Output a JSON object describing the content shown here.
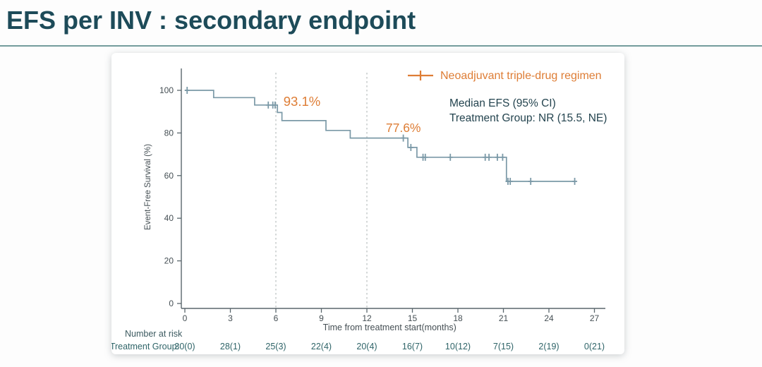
{
  "header": {
    "title": "EFS per INV : secondary endpoint"
  },
  "legend": {
    "series_label": "Neoadjuvant triple-drug regimen",
    "stats_line1": "Median EFS (95% CI)",
    "stats_line2": "Treatment Group: NR (15.5, NE)"
  },
  "colors": {
    "title": "#1d4b59",
    "rule": "#749c9c",
    "curve": "#7b99a7",
    "axis": "#5a676d",
    "tick_label": "#454f54",
    "orange": "#de7d35",
    "stats_text": "#24444f",
    "risk_text": "#2f6468",
    "risk_heading": "#3c5a60",
    "dashed_line": "#b8bdbd"
  },
  "chart_data": {
    "type": "line",
    "subtype": "kaplan-meier-step",
    "title": "",
    "xlabel": "Time from treatment start(months)",
    "ylabel": "Event-Free Survival (%)",
    "xticks": [
      0,
      3,
      6,
      9,
      12,
      15,
      18,
      21,
      24,
      27
    ],
    "yticks": [
      0,
      20,
      40,
      60,
      80,
      100
    ],
    "xlim": [
      0,
      28
    ],
    "ylim": [
      0,
      105
    ],
    "grid": false,
    "legend_position": "top-right",
    "reference_lines_x": [
      6,
      12
    ],
    "series": [
      {
        "name": "Neoadjuvant triple-drug regimen",
        "start": [
          0,
          100
        ],
        "steps": [
          [
            1.9,
            96.6
          ],
          [
            4.6,
            93.1
          ],
          [
            6.1,
            89.6
          ],
          [
            6.4,
            85.8
          ],
          [
            9.3,
            81.2
          ],
          [
            10.9,
            77.6
          ],
          [
            14.7,
            73.2
          ],
          [
            15.3,
            68.6
          ],
          [
            21.2,
            57.3
          ]
        ],
        "end_time": 25.7,
        "censors": [
          [
            0.15,
            100
          ],
          [
            5.5,
            93.1
          ],
          [
            5.8,
            93.1
          ],
          [
            5.95,
            93.1
          ],
          [
            14.4,
            77.6
          ],
          [
            14.9,
            73.2
          ],
          [
            15.7,
            68.6
          ],
          [
            15.85,
            68.6
          ],
          [
            17.5,
            68.6
          ],
          [
            19.8,
            68.6
          ],
          [
            20.05,
            68.6
          ],
          [
            20.6,
            68.6
          ],
          [
            20.95,
            68.6
          ],
          [
            21.3,
            57.3
          ],
          [
            21.45,
            57.3
          ],
          [
            22.8,
            57.3
          ],
          [
            25.7,
            57.3
          ]
        ]
      }
    ],
    "annotations": [
      {
        "text": "93.1%",
        "x": 6.5,
        "y": 92.7,
        "anchor": "start",
        "size": 18.5
      },
      {
        "text": "77.6%",
        "x": 13.25,
        "y": 80.5,
        "anchor": "start",
        "size": 17.5
      }
    ]
  },
  "number_at_risk": {
    "heading": "Number at risk",
    "row_label": "Treatment Group:",
    "times": [
      0,
      3,
      6,
      9,
      12,
      15,
      18,
      21,
      24,
      27
    ],
    "values": [
      "30(0)",
      "28(1)",
      "25(3)",
      "22(4)",
      "20(4)",
      "16(7)",
      "10(12)",
      "7(15)",
      "2(19)",
      "0(21)"
    ]
  }
}
